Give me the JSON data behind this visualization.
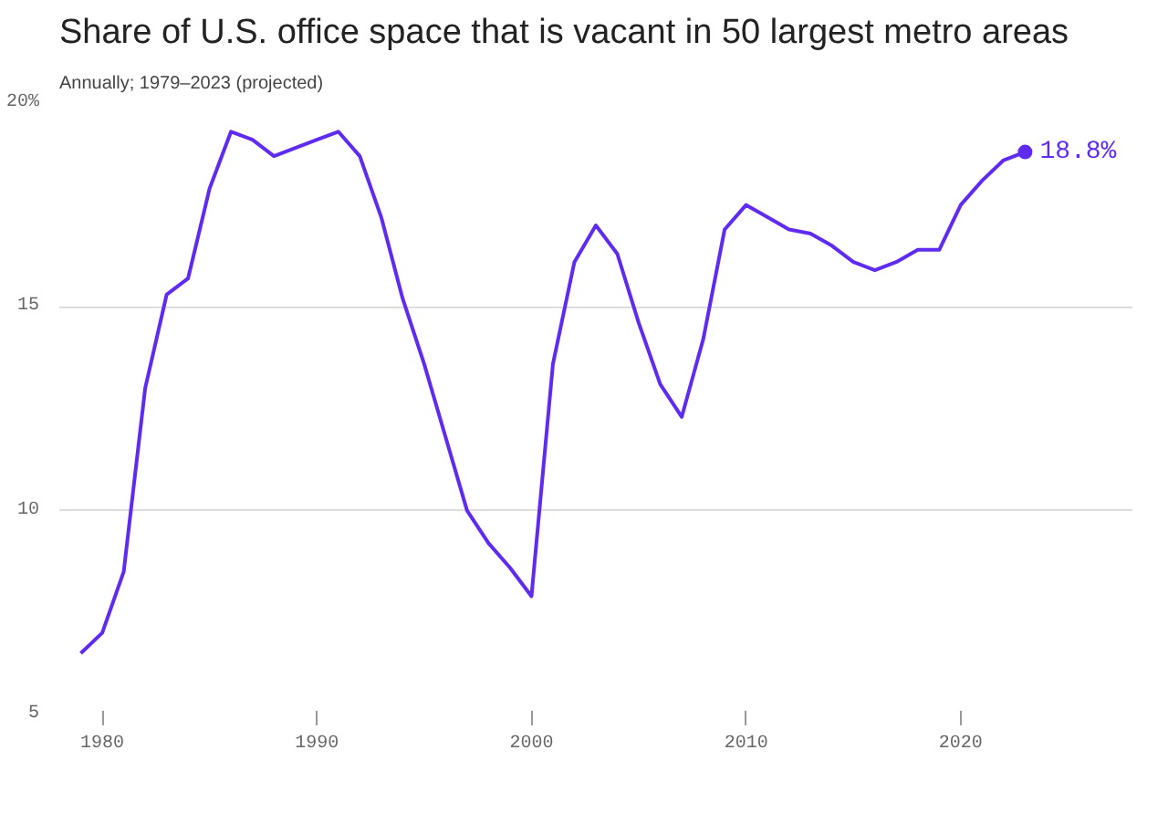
{
  "chart_data": {
    "type": "line",
    "title": "Share of U.S. office space that is vacant in 50 largest metro areas",
    "subtitle": "Annually; 1979–2023 (projected)",
    "x": [
      1979,
      1980,
      1981,
      1982,
      1983,
      1984,
      1985,
      1986,
      1987,
      1988,
      1989,
      1990,
      1991,
      1992,
      1993,
      1994,
      1995,
      1996,
      1997,
      1998,
      1999,
      2000,
      2001,
      2002,
      2003,
      2004,
      2005,
      2006,
      2007,
      2008,
      2009,
      2010,
      2011,
      2012,
      2013,
      2014,
      2015,
      2016,
      2017,
      2018,
      2019,
      2020,
      2021,
      2022,
      2023
    ],
    "series": [
      {
        "color": "#5f2bf0",
        "values": [
          6.5,
          7.0,
          8.5,
          13.0,
          15.3,
          15.7,
          17.9,
          19.3,
          19.1,
          18.7,
          18.9,
          19.1,
          19.3,
          18.7,
          17.2,
          15.2,
          13.6,
          11.8,
          10.0,
          9.2,
          8.6,
          7.9,
          13.6,
          16.1,
          17.0,
          16.3,
          14.6,
          13.1,
          12.3,
          14.2,
          16.9,
          17.5,
          17.2,
          16.9,
          16.8,
          16.5,
          16.1,
          15.9,
          16.1,
          16.4,
          16.4,
          17.5,
          18.1,
          18.6,
          18.8
        ],
        "value_labels": [
          null,
          null,
          null,
          null,
          null,
          null,
          null,
          null,
          null,
          null,
          null,
          null,
          null,
          null,
          null,
          null,
          null,
          null,
          null,
          null,
          null,
          null,
          null,
          null,
          null,
          null,
          null,
          null,
          null,
          null,
          null,
          null,
          null,
          null,
          null,
          null,
          null,
          null,
          null,
          null,
          null,
          null,
          null,
          null,
          "18.8%"
        ]
      }
    ],
    "xlim": [
      1978,
      2028
    ],
    "ylim": [
      5,
      20
    ],
    "xticks": [
      1980,
      1990,
      2000,
      2010,
      2020
    ],
    "yticks": [
      5,
      10,
      15,
      {
        "value": 20,
        "label": "20%"
      }
    ],
    "grid": "y",
    "marker": "none",
    "line_style": "solid"
  }
}
